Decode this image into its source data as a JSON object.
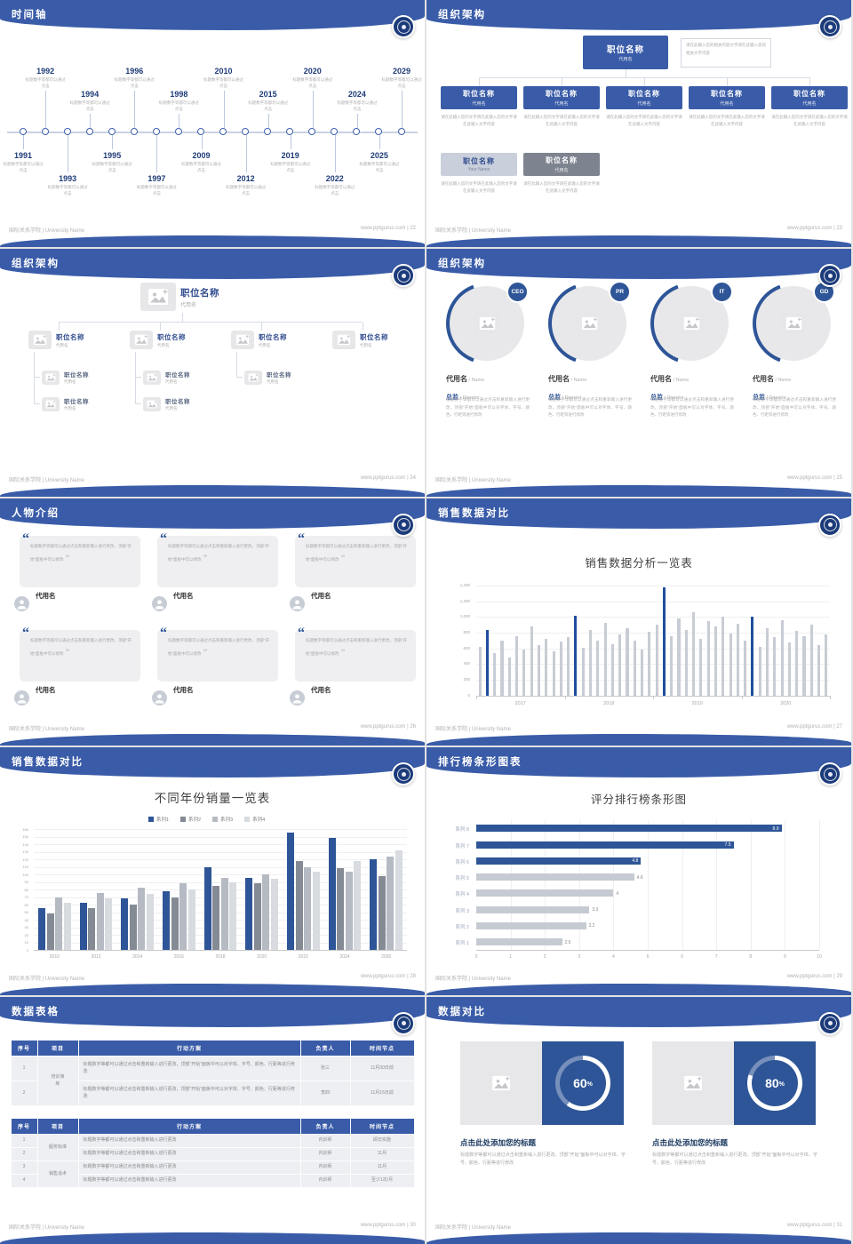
{
  "footer": {
    "school": "国际关系学院 | University Name",
    "site": "www.pptgurus.com",
    "sep": " | "
  },
  "slides": [
    {
      "page": "22",
      "title": "时间轴",
      "type": "timeline",
      "caption": "标题数字等都可以通过点击",
      "items": [
        {
          "year": "1991",
          "side": "bottom",
          "tier": "near"
        },
        {
          "year": "1992",
          "side": "top",
          "tier": "far"
        },
        {
          "year": "1993",
          "side": "bottom",
          "tier": "far"
        },
        {
          "year": "1994",
          "side": "top",
          "tier": "near"
        },
        {
          "year": "1995",
          "side": "bottom",
          "tier": "near"
        },
        {
          "year": "1996",
          "side": "top",
          "tier": "far"
        },
        {
          "year": "1997",
          "side": "bottom",
          "tier": "far"
        },
        {
          "year": "1998",
          "side": "top",
          "tier": "near"
        },
        {
          "year": "2009",
          "side": "bottom",
          "tier": "near"
        },
        {
          "year": "2010",
          "side": "top",
          "tier": "far"
        },
        {
          "year": "2012",
          "side": "bottom",
          "tier": "far"
        },
        {
          "year": "2015",
          "side": "top",
          "tier": "near"
        },
        {
          "year": "2019",
          "side": "bottom",
          "tier": "near"
        },
        {
          "year": "2020",
          "side": "top",
          "tier": "far"
        },
        {
          "year": "2022",
          "side": "bottom",
          "tier": "far"
        },
        {
          "year": "2024",
          "side": "top",
          "tier": "near"
        },
        {
          "year": "2025",
          "side": "bottom",
          "tier": "near"
        },
        {
          "year": "2029",
          "side": "top",
          "tier": "far"
        }
      ]
    },
    {
      "page": "23",
      "title": "组织架构",
      "type": "orgBoxes",
      "root": {
        "title": "职位名称",
        "sub": "代用名"
      },
      "root_note": "请在此输入您的相关内容文字请在此输入您的相关文字内容",
      "nodes": [
        {
          "title": "职位名称",
          "sub": "代用名"
        },
        {
          "title": "职位名称",
          "sub": "代用名"
        },
        {
          "title": "职位名称",
          "sub": "代用名"
        },
        {
          "title": "职位名称",
          "sub": "代用名"
        },
        {
          "title": "职位名称",
          "sub": "代用名"
        }
      ],
      "node_note": "请在此输入您的文字请在此输入您的文字请在此输入文字内容",
      "extras": [
        {
          "title": "职位名称",
          "sub": "Your Name",
          "variant": "light"
        },
        {
          "title": "职位名称",
          "sub": "代用名",
          "variant": "dark"
        }
      ]
    },
    {
      "page": "24",
      "title": "组织架构",
      "type": "orgPhotos",
      "root": {
        "title": "职位名称",
        "sub": "代用名"
      },
      "children": [
        {
          "title": "职位名称",
          "sub": "代用名",
          "subs": [
            {
              "title": "职位名称",
              "sub": "代用名"
            },
            {
              "title": "职位名称",
              "sub": "代用名"
            }
          ]
        },
        {
          "title": "职位名称",
          "sub": "代用名",
          "subs": [
            {
              "title": "职位名称",
              "sub": "代用名"
            },
            {
              "title": "职位名称",
              "sub": "代用名"
            }
          ]
        },
        {
          "title": "职位名称",
          "sub": "代用名",
          "subs": [
            {
              "title": "职位名称",
              "sub": "代用名"
            }
          ]
        },
        {
          "title": "职位名称",
          "sub": "代用名",
          "subs": []
        }
      ]
    },
    {
      "page": "25",
      "title": "组织架构",
      "type": "orgCircles",
      "members": [
        {
          "badge": "CEO",
          "name": "代用名",
          "name_suffix": "/ Name",
          "role": "总监",
          "role_suffix": "/ Director",
          "desc": "标题数字等都可以通过点击和重新输入进行更改，顶部“开始”面板中可以对字体、字号、颜色、行距等进行修改"
        },
        {
          "badge": "PR",
          "name": "代用名",
          "name_suffix": "/ Name",
          "role": "总监",
          "role_suffix": "/ Director",
          "desc": "标题数字等都可以通过点击和重新输入进行更改，顶部“开始”面板中可以对字体、字号、颜色、行距等进行修改"
        },
        {
          "badge": "IT",
          "name": "代用名",
          "name_suffix": "/ Name",
          "role": "总监",
          "role_suffix": "/ Director",
          "desc": "标题数字等都可以通过点击和重新输入进行更改，顶部“开始”面板中可以对字体、字号、颜色、行距等进行修改"
        },
        {
          "badge": "GD",
          "name": "代用名",
          "name_suffix": "/ Name",
          "role": "总监",
          "role_suffix": "/ Director",
          "desc": "标题数字等都可以通过点击和重新输入进行更改，顶部“开始”面板中可以对字体、字号、颜色、行距等进行修改"
        }
      ]
    },
    {
      "page": "26",
      "title": "人物介绍",
      "type": "people",
      "cards": [
        {
          "name": "代用名",
          "text": "标题数字等都可以通过点击和重新输入进行更改，顶部“开始”面板中可以修改"
        },
        {
          "name": "代用名",
          "text": "标题数字等都可以通过点击和重新输入进行更改，顶部“开始”面板中可以修改"
        },
        {
          "name": "代用名",
          "text": "标题数字等都可以通过点击和重新输入进行更改，顶部“开始”面板中可以修改"
        },
        {
          "name": "代用名",
          "text": "标题数字等都可以通过点击和重新输入进行更改，顶部“开始”面板中可以修改"
        },
        {
          "name": "代用名",
          "text": "标题数字等都可以通过点击和重新输入进行更改，顶部“开始”面板中可以修改"
        },
        {
          "name": "代用名",
          "text": "标题数字等都可以通过点击和重新输入进行更改，顶部“开始”面板中可以修改"
        }
      ]
    },
    {
      "page": "27",
      "title": "销售数据对比",
      "type": "thinBars",
      "chart_ref": 0
    },
    {
      "page": "28",
      "title": "销售数据对比",
      "type": "grouped",
      "chart_ref": 1
    },
    {
      "page": "29",
      "title": "排行榜条形图表",
      "type": "hbars",
      "chart_ref": 2
    },
    {
      "page": "30",
      "title": "数据表格",
      "type": "tables",
      "table1": {
        "headers": [
          "序号",
          "项目",
          "行动方案",
          "负责人",
          "时间节点"
        ],
        "rows": [
          {
            "no": "1",
            "project": "培训演练",
            "plan": "标题数字等都可以通过点击和重新输入进行更改，顶部“开始”面板中可以对字体、字号、颜色、行距等进行修改",
            "owner": "张三",
            "time": "11月30日前"
          },
          {
            "no": "2",
            "project": "",
            "plan": "标题数字等都可以通过点击和重新输入进行更改，顶部“开始”面板中可以对字体、字号、颜色、行距等进行修改",
            "owner": "李四",
            "time": "11月15日前"
          }
        ]
      },
      "table2": {
        "headers": [
          "序号",
          "项目",
          "行动方案",
          "负责人",
          "时间节点"
        ],
        "rows": [
          {
            "no": "1",
            "project": "服务标准",
            "plan": "标题数字等都可以通过点击和重新输入进行更改",
            "owner": "内训师",
            "time": "即日实施"
          },
          {
            "no": "2",
            "project": "",
            "plan": "标题数字等都可以通过点击和重新输入进行更改",
            "owner": "内训师",
            "time": "11月"
          },
          {
            "no": "3",
            "project": "销售话术",
            "plan": "标题数字等都可以通过点击和重新输入进行更改",
            "owner": "内训师",
            "time": "11月"
          },
          {
            "no": "4",
            "project": "",
            "plan": "标题数字等都可以通过点击和重新输入进行更改",
            "owner": "内训师",
            "time": "至少1次/月"
          }
        ]
      }
    },
    {
      "page": "31",
      "title": "数据对比",
      "type": "donuts",
      "panels": [
        {
          "percent": 60,
          "heading": "点击此处添加您的标题",
          "desc": "标题数字等都可以通过点击和重新输入进行更改，顶部“开始”面板中可以对字体、字号、颜色、行距等进行修改"
        },
        {
          "percent": 80,
          "heading": "点击此处添加您的标题",
          "desc": "标题数字等都可以通过点击和重新输入进行更改，顶部“开始”面板中可以对字体、字号、颜色、行距等进行修改"
        }
      ]
    }
  ],
  "chart_data": [
    {
      "type": "bar",
      "title": "销售数据分析一览表",
      "x_groups": [
        "2017",
        "2018",
        "2019",
        "2020"
      ],
      "ymax": 1450,
      "yticks": [
        {
          "v": 0,
          "l": "0"
        },
        {
          "v": 200,
          "l": "200"
        },
        {
          "v": 400,
          "l": "400"
        },
        {
          "v": 600,
          "l": "600"
        },
        {
          "v": 800,
          "l": "800"
        },
        {
          "v": 1000,
          "l": "1,000"
        },
        {
          "v": 1200,
          "l": "1,200"
        },
        {
          "v": 1400,
          "l": "1,400"
        }
      ],
      "bar_color": "#C8CCD4",
      "highlight_color": "#1F4E9C",
      "highlight_indices": [
        1,
        13,
        25,
        37
      ],
      "values": [
        620,
        830,
        540,
        700,
        480,
        760,
        590,
        880,
        640,
        720,
        560,
        690,
        750,
        1020,
        610,
        840,
        700,
        930,
        650,
        780,
        860,
        700,
        590,
        810,
        900,
        1380,
        760,
        980,
        840,
        1060,
        720,
        950,
        880,
        1010,
        790,
        920,
        700,
        1000,
        620,
        860,
        740,
        960,
        680,
        820,
        760,
        900,
        640,
        780
      ]
    },
    {
      "type": "bar-grouped",
      "title": "不同年份销量一览表",
      "categories": [
        "2010",
        "2012",
        "2014",
        "2016",
        "2018",
        "2020",
        "2022",
        "2024",
        "2026"
      ],
      "ymax": 160,
      "ystep": 10,
      "series": [
        {
          "name": "系列1",
          "color": "#2E5597",
          "values": [
            55,
            62,
            68,
            78,
            110,
            96,
            155,
            148,
            120
          ]
        },
        {
          "name": "系列2",
          "color": "#858B95",
          "values": [
            48,
            55,
            60,
            70,
            85,
            88,
            118,
            108,
            98
          ]
        },
        {
          "name": "系列3",
          "color": "#B5BAC3",
          "values": [
            70,
            75,
            82,
            88,
            95,
            100,
            110,
            104,
            124
          ]
        },
        {
          "name": "系列4",
          "color": "#D8DBE0",
          "values": [
            62,
            68,
            74,
            80,
            90,
            94,
            104,
            118,
            132
          ]
        }
      ]
    },
    {
      "type": "bar-horizontal",
      "title": "评分排行榜条形图",
      "categories": [
        "系列 8",
        "系列 7",
        "系列 6",
        "系列 5",
        "系列 4",
        "系列 3",
        "系列 2",
        "系列 1"
      ],
      "values": [
        "8.9",
        "7.5",
        "4.8",
        "4.6",
        "4",
        "3.3",
        "3.2",
        "2.5"
      ],
      "values_num": [
        8.9,
        7.5,
        4.8,
        4.6,
        4,
        3.3,
        3.2,
        2.5
      ],
      "xmax": 10,
      "xticks": [
        0,
        1,
        2,
        3,
        4,
        5,
        6,
        7,
        8,
        9,
        10
      ],
      "highlight_color": "#2E5597",
      "colors": [
        "#2E5597",
        "#2E5597",
        "#2E5597",
        "#C6CAD2",
        "#C6CAD2",
        "#C6CAD2",
        "#C6CAD2",
        "#C6CAD2"
      ]
    }
  ]
}
